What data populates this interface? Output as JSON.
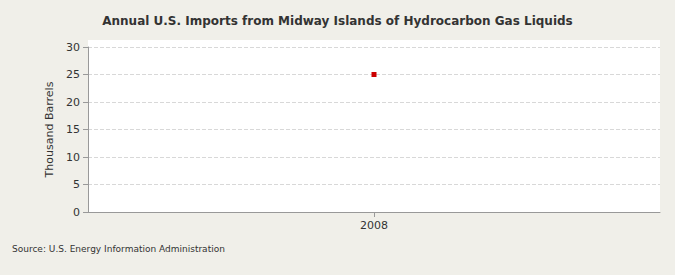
{
  "chart_data": {
    "type": "line",
    "title": "Annual U.S. Imports from Midway Islands of Hydrocarbon Gas Liquids",
    "y_label": "Thousand Barrels",
    "source": "Source: U.S. Energy Information Administration",
    "categories": [
      "2008"
    ],
    "values": [
      25
    ],
    "color": "#cc0000",
    "marker": "square",
    "ylim": [
      0,
      30
    ],
    "yticks": [
      0,
      5,
      10,
      15,
      20,
      25,
      30
    ],
    "grid": true
  }
}
